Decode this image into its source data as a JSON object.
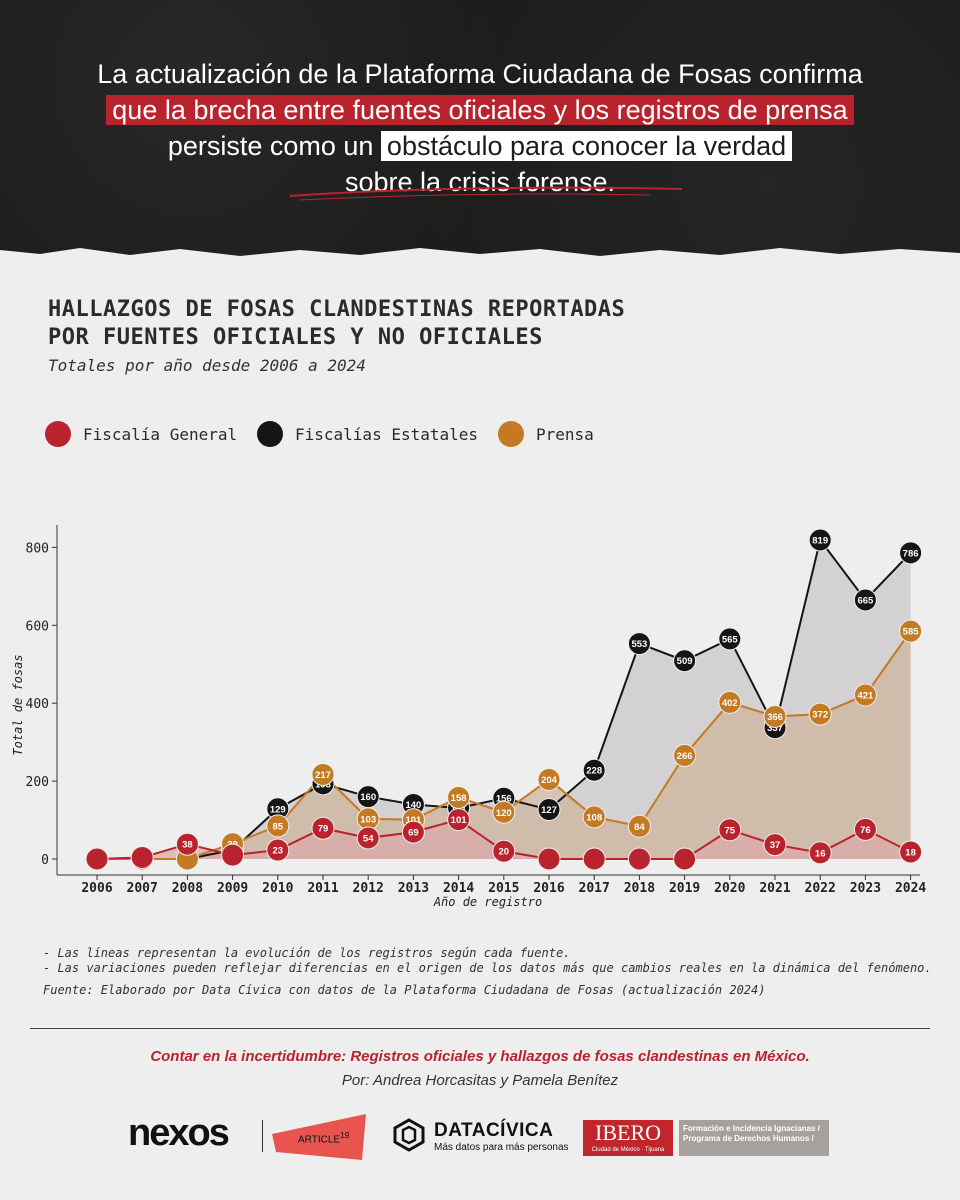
{
  "header": {
    "line1": "La actualización de la Plataforma Ciudadana de Fosas confirma",
    "line2": "que la brecha entre fuentes oficiales y los registros de prensa",
    "line3_pre": "persiste como un ",
    "line3_highlight": "obstáculo para conocer la verdad",
    "line4": "sobre la crisis forense."
  },
  "title": {
    "line1": "HALLAZGOS DE FOSAS CLANDESTINAS REPORTADAS",
    "line2": "POR FUENTES OFICIALES Y NO OFICIALES",
    "subtitle": "Totales por año desde 2006 a 2024"
  },
  "legend": [
    {
      "label": "Fiscalía General",
      "color": "#b8232e"
    },
    {
      "label": "Fiscalías Estatales",
      "color": "#151515"
    },
    {
      "label": "Prensa",
      "color": "#c47a22"
    }
  ],
  "chart_data": {
    "type": "line",
    "xlabel": "Año de registro",
    "ylabel": "Total de fosas",
    "ylim": [
      0,
      850
    ],
    "yticks": [
      0,
      200,
      400,
      600,
      800
    ],
    "categories": [
      "2006",
      "2007",
      "2008",
      "2009",
      "2010",
      "2011",
      "2012",
      "2013",
      "2014",
      "2015",
      "2016",
      "2017",
      "2018",
      "2019",
      "2020",
      "2021",
      "2022",
      "2023",
      "2024"
    ],
    "series": [
      {
        "name": "Fiscalías Estatales",
        "color": "#151515",
        "fill": "#c9c7c8",
        "values": [
          0,
          0,
          0,
          23,
          129,
          193,
          160,
          140,
          131,
          156,
          127,
          228,
          553,
          509,
          565,
          337,
          819,
          665,
          786
        ],
        "labels": [
          "",
          "",
          "",
          "",
          "129",
          "193",
          "160",
          "140",
          "131",
          "156",
          "127",
          "228",
          "553",
          "509",
          "565",
          "337",
          "819",
          "665",
          "786"
        ]
      },
      {
        "name": "Prensa",
        "color": "#c47a22",
        "fill": "#cdb49c",
        "values": [
          0,
          0,
          0,
          39,
          85,
          217,
          103,
          101,
          158,
          120,
          204,
          108,
          84,
          266,
          402,
          366,
          372,
          421,
          585
        ],
        "labels": [
          "",
          "",
          "",
          "39",
          "85",
          "217",
          "103",
          "101",
          "158",
          "120",
          "204",
          "108",
          "84",
          "266",
          "402",
          "366",
          "372",
          "421",
          "585"
        ]
      },
      {
        "name": "Fiscalía General",
        "color": "#b8232e",
        "fill": "#d9a9a8",
        "values": [
          0,
          4,
          38,
          10,
          23,
          79,
          54,
          69,
          101,
          20,
          0,
          0,
          0,
          0,
          75,
          37,
          16,
          76,
          18
        ],
        "labels": [
          "",
          "",
          "38",
          "",
          "23",
          "79",
          "54",
          "69",
          "101",
          "20",
          "",
          "",
          "",
          "",
          "75",
          "37",
          "16",
          "76",
          "18"
        ]
      }
    ]
  },
  "notes": {
    "line1": "- Las líneas representan la evolución de los registros según cada fuente.",
    "line2": "- Las variaciones pueden reflejar diferencias en el origen de los datos más que cambios reales en la dinámica del fenómeno.",
    "source": "Fuente: Elaborado por Data Cívica con datos de la Plataforma Ciudadana de Fosas (actualización 2024)"
  },
  "credits": {
    "title": "Contar en la incertidumbre: Registros oficiales y hallazgos de fosas clandestinas en México.",
    "authors": "Por: Andrea Horcasitas y Pamela Benítez"
  },
  "logos": {
    "nexos": "nexos",
    "article": "ARTICLE",
    "article_sup": "19",
    "datacivica": "DATACÍVICA",
    "datacivica_tag": "Más datos para más personas",
    "ibero": "IBERO",
    "ibero_sub": "Ciudad de México · Tijuana",
    "ibero_program1": "Formación e Incidencia Ignacianas /",
    "ibero_program2": "Programa de Derechos Humanos /"
  }
}
